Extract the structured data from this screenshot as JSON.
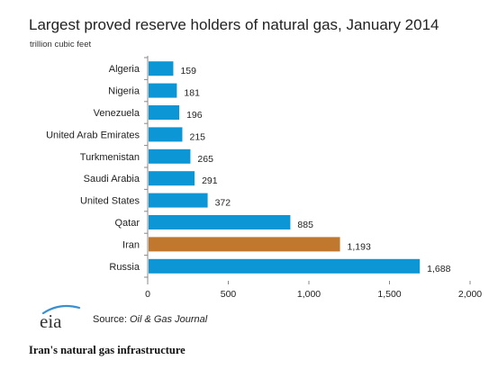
{
  "chart_data": {
    "type": "bar",
    "orientation": "horizontal",
    "title": "Largest  proved reserve holders of natural  gas, January 2014",
    "subtitle": "trillion cubic feet",
    "categories": [
      "Algeria",
      "Nigeria",
      "Venezuela",
      "United Arab Emirates",
      "Turkmenistan",
      "Saudi Arabia",
      "United States",
      "Qatar",
      "Iran",
      "Russia"
    ],
    "values": [
      159,
      181,
      196,
      215,
      265,
      291,
      372,
      885,
      1193,
      1688
    ],
    "data_labels": [
      "159",
      "181",
      "196",
      "215",
      "265",
      "291",
      "372",
      "885",
      "1,193",
      "1,688"
    ],
    "highlight_category": "Iran",
    "colors": {
      "default": "#0d96d6",
      "highlight": "#c0772e"
    },
    "xlim": [
      0,
      2000
    ],
    "xticks": [
      0,
      500,
      1000,
      1500,
      2000
    ],
    "xtick_labels": [
      "0",
      "500",
      "1,000",
      "1,500",
      "2,000"
    ],
    "grid": false
  },
  "source": {
    "prefix": "Source: ",
    "publication": "Oil & Gas Journal"
  },
  "logo": {
    "text": "eia",
    "icon": "eia-logo"
  },
  "caption": "Iran's natural gas infrastructure"
}
